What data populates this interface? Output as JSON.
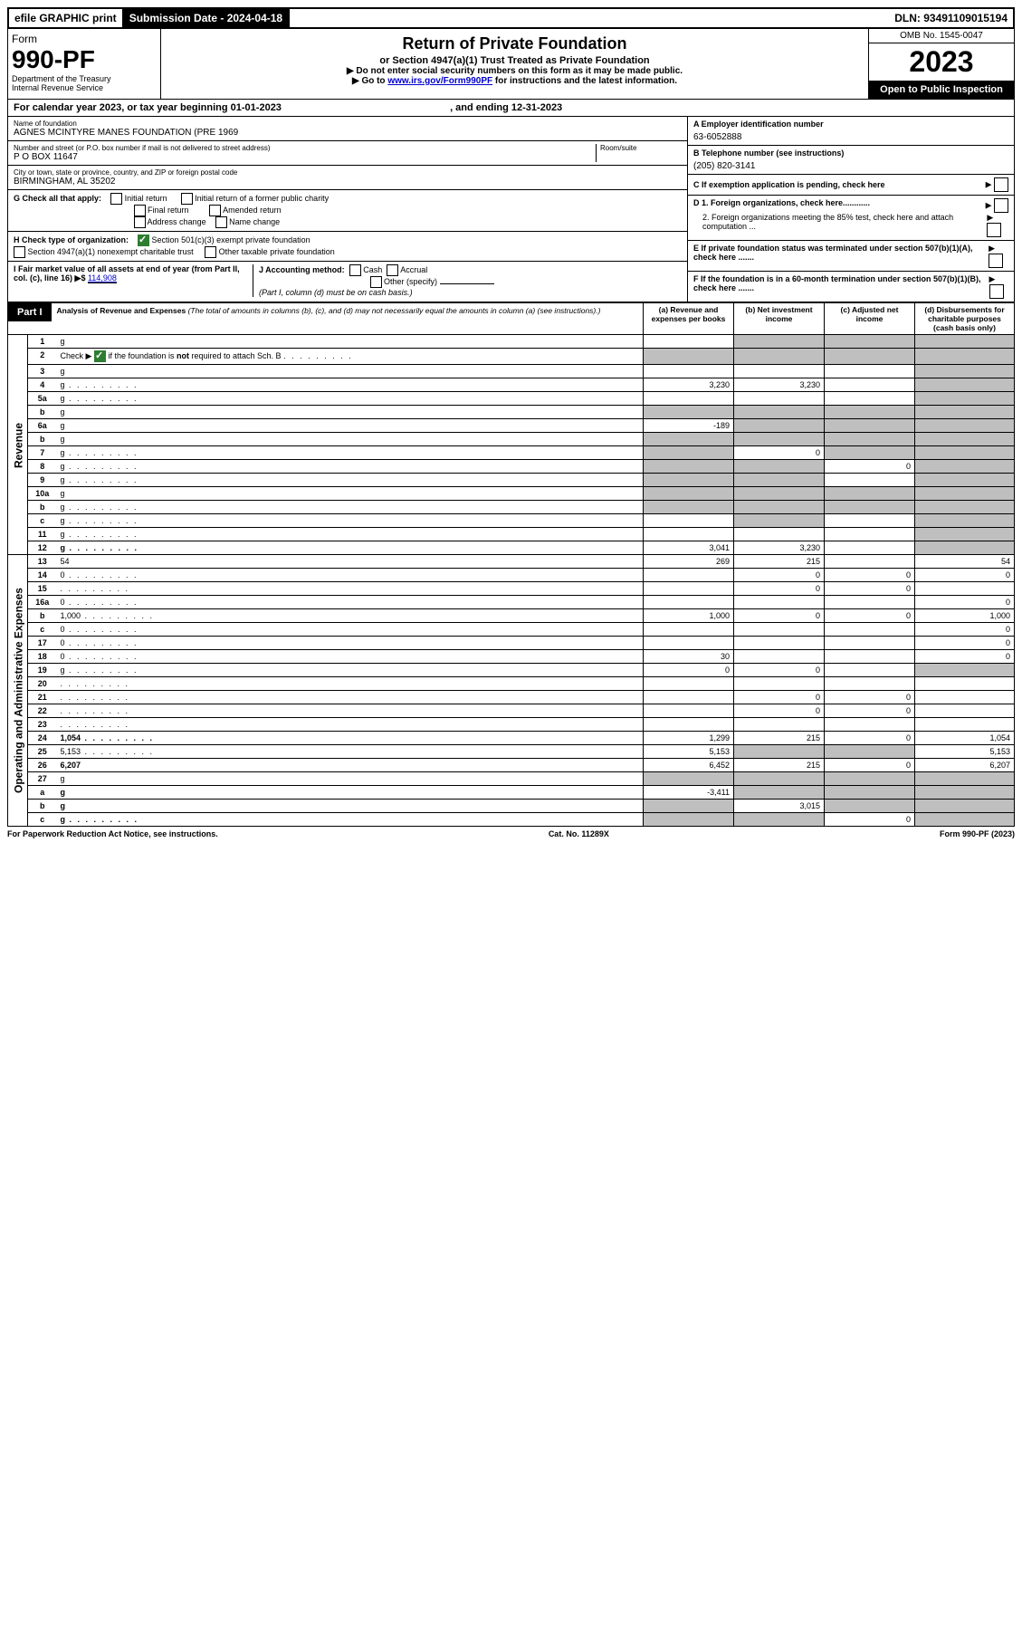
{
  "topbar": {
    "efile": "efile GRAPHIC print",
    "submission_label": "Submission Date - 2024-04-18",
    "dln": "DLN: 93491109015194"
  },
  "header": {
    "form_word": "Form",
    "form_number": "990-PF",
    "dept": "Department of the Treasury",
    "irs": "Internal Revenue Service",
    "title": "Return of Private Foundation",
    "subtitle": "or Section 4947(a)(1) Trust Treated as Private Foundation",
    "note1": "▶ Do not enter social security numbers on this form as it may be made public.",
    "note2_pre": "▶ Go to ",
    "note2_link": "www.irs.gov/Form990PF",
    "note2_post": " for instructions and the latest information.",
    "omb": "OMB No. 1545-0047",
    "year": "2023",
    "open": "Open to Public Inspection"
  },
  "cal": {
    "text_pre": "For calendar year 2023, or tax year beginning ",
    "begin": "01-01-2023",
    "mid": " , and ending ",
    "end": "12-31-2023"
  },
  "entity": {
    "name_label": "Name of foundation",
    "name": "AGNES MCINTYRE MANES FOUNDATION (PRE 1969",
    "addr_label": "Number and street (or P.O. box number if mail is not delivered to street address)",
    "room_label": "Room/suite",
    "addr": "P O BOX 11647",
    "city_label": "City or town, state or province, country, and ZIP or foreign postal code",
    "city": "BIRMINGHAM, AL  35202",
    "ein_label": "A Employer identification number",
    "ein": "63-6052888",
    "tel_label": "B Telephone number (see instructions)",
    "tel": "(205) 820-3141",
    "c_label": "C If exemption application is pending, check here",
    "d1": "D 1. Foreign organizations, check here............",
    "d2": "2. Foreign organizations meeting the 85% test, check here and attach computation ...",
    "e": "E  If private foundation status was terminated under section 507(b)(1)(A), check here .......",
    "f": "F  If the foundation is in a 60-month termination under section 507(b)(1)(B), check here .......",
    "g_label": "G Check all that apply:",
    "g_opts": [
      "Initial return",
      "Final return",
      "Address change",
      "Initial return of a former public charity",
      "Amended return",
      "Name change"
    ],
    "h_label": "H Check type of organization:",
    "h_opts": [
      "Section 501(c)(3) exempt private foundation",
      "Section 4947(a)(1) nonexempt charitable trust",
      "Other taxable private foundation"
    ],
    "i_label": "I Fair market value of all assets at end of year (from Part II, col. (c), line 16) ▶$",
    "i_val": "114,908",
    "j_label": "J Accounting method:",
    "j_opts": [
      "Cash",
      "Accrual",
      "Other (specify)"
    ],
    "j_note": "(Part I, column (d) must be on cash basis.)"
  },
  "part1": {
    "tag": "Part I",
    "title": "Analysis of Revenue and Expenses",
    "note": " (The total of amounts in columns (b), (c), and (d) may not necessarily equal the amounts in column (a) (see instructions).)",
    "cols": {
      "a": "(a) Revenue and expenses per books",
      "b": "(b) Net investment income",
      "c": "(c) Adjusted net income",
      "d": "(d) Disbursements for charitable purposes (cash basis only)"
    }
  },
  "vert": {
    "rev": "Revenue",
    "exp": "Operating and Administrative Expenses"
  },
  "rows": [
    {
      "n": "1",
      "d": "g",
      "a": "",
      "b": "g",
      "c": "g"
    },
    {
      "n": "2",
      "d": "g",
      "dots": true,
      "a": "g",
      "b": "g",
      "c": "g"
    },
    {
      "n": "3",
      "d": "g",
      "a": "",
      "b": "",
      "c": ""
    },
    {
      "n": "4",
      "d": "g",
      "dots": true,
      "a": "3,230",
      "b": "3,230",
      "c": ""
    },
    {
      "n": "5a",
      "d": "g",
      "dots": true,
      "a": "",
      "b": "",
      "c": ""
    },
    {
      "n": "b",
      "d": "g",
      "a": "g",
      "b": "g",
      "c": "g"
    },
    {
      "n": "6a",
      "d": "g",
      "a": "-189",
      "b": "g",
      "c": "g"
    },
    {
      "n": "b",
      "d": "g",
      "a": "g",
      "b": "g",
      "c": "g"
    },
    {
      "n": "7",
      "d": "g",
      "dots": true,
      "a": "g",
      "b": "0",
      "c": "g"
    },
    {
      "n": "8",
      "d": "g",
      "dots": true,
      "a": "g",
      "b": "g",
      "c": "0"
    },
    {
      "n": "9",
      "d": "g",
      "dots": true,
      "a": "g",
      "b": "g",
      "c": ""
    },
    {
      "n": "10a",
      "d": "g",
      "a": "g",
      "b": "g",
      "c": "g"
    },
    {
      "n": "b",
      "d": "g",
      "dots": true,
      "a": "g",
      "b": "g",
      "c": "g"
    },
    {
      "n": "c",
      "d": "g",
      "dots": true,
      "a": "",
      "b": "g",
      "c": ""
    },
    {
      "n": "11",
      "d": "g",
      "dots": true,
      "a": "",
      "b": "",
      "c": ""
    },
    {
      "n": "12",
      "d": "g",
      "dots": true,
      "bold": true,
      "a": "3,041",
      "b": "3,230",
      "c": ""
    },
    {
      "n": "13",
      "d": "54",
      "a": "269",
      "b": "215",
      "c": ""
    },
    {
      "n": "14",
      "d": "0",
      "dots": true,
      "a": "",
      "b": "0",
      "c": "0"
    },
    {
      "n": "15",
      "d": "",
      "dots": true,
      "a": "",
      "b": "0",
      "c": "0"
    },
    {
      "n": "16a",
      "d": "0",
      "dots": true,
      "a": "",
      "b": "",
      "c": ""
    },
    {
      "n": "b",
      "d": "1,000",
      "dots": true,
      "a": "1,000",
      "b": "0",
      "c": "0"
    },
    {
      "n": "c",
      "d": "0",
      "dots": true,
      "a": "",
      "b": "",
      "c": ""
    },
    {
      "n": "17",
      "d": "0",
      "dots": true,
      "a": "",
      "b": "",
      "c": ""
    },
    {
      "n": "18",
      "d": "0",
      "dots": true,
      "a": "30",
      "b": "",
      "c": ""
    },
    {
      "n": "19",
      "d": "g",
      "dots": true,
      "a": "0",
      "b": "0",
      "c": ""
    },
    {
      "n": "20",
      "d": "",
      "dots": true,
      "a": "",
      "b": "",
      "c": ""
    },
    {
      "n": "21",
      "d": "",
      "dots": true,
      "a": "",
      "b": "0",
      "c": "0"
    },
    {
      "n": "22",
      "d": "",
      "dots": true,
      "a": "",
      "b": "0",
      "c": "0"
    },
    {
      "n": "23",
      "d": "",
      "dots": true,
      "a": "",
      "b": "",
      "c": ""
    },
    {
      "n": "24",
      "d": "1,054",
      "dots": true,
      "bold": true,
      "a": "1,299",
      "b": "215",
      "c": "0"
    },
    {
      "n": "25",
      "d": "5,153",
      "dots": true,
      "a": "5,153",
      "b": "g",
      "c": "g"
    },
    {
      "n": "26",
      "d": "6,207",
      "bold": true,
      "a": "6,452",
      "b": "215",
      "c": "0"
    },
    {
      "n": "27",
      "d": "g",
      "a": "g",
      "b": "g",
      "c": "g"
    },
    {
      "n": "a",
      "d": "g",
      "bold": true,
      "a": "-3,411",
      "b": "g",
      "c": "g"
    },
    {
      "n": "b",
      "d": "g",
      "bold": true,
      "a": "g",
      "b": "3,015",
      "c": "g"
    },
    {
      "n": "c",
      "d": "g",
      "dots": true,
      "bold": true,
      "a": "g",
      "b": "g",
      "c": "0"
    }
  ],
  "footer": {
    "left": "For Paperwork Reduction Act Notice, see instructions.",
    "mid": "Cat. No. 11289X",
    "right": "Form 990-PF (2023)"
  }
}
